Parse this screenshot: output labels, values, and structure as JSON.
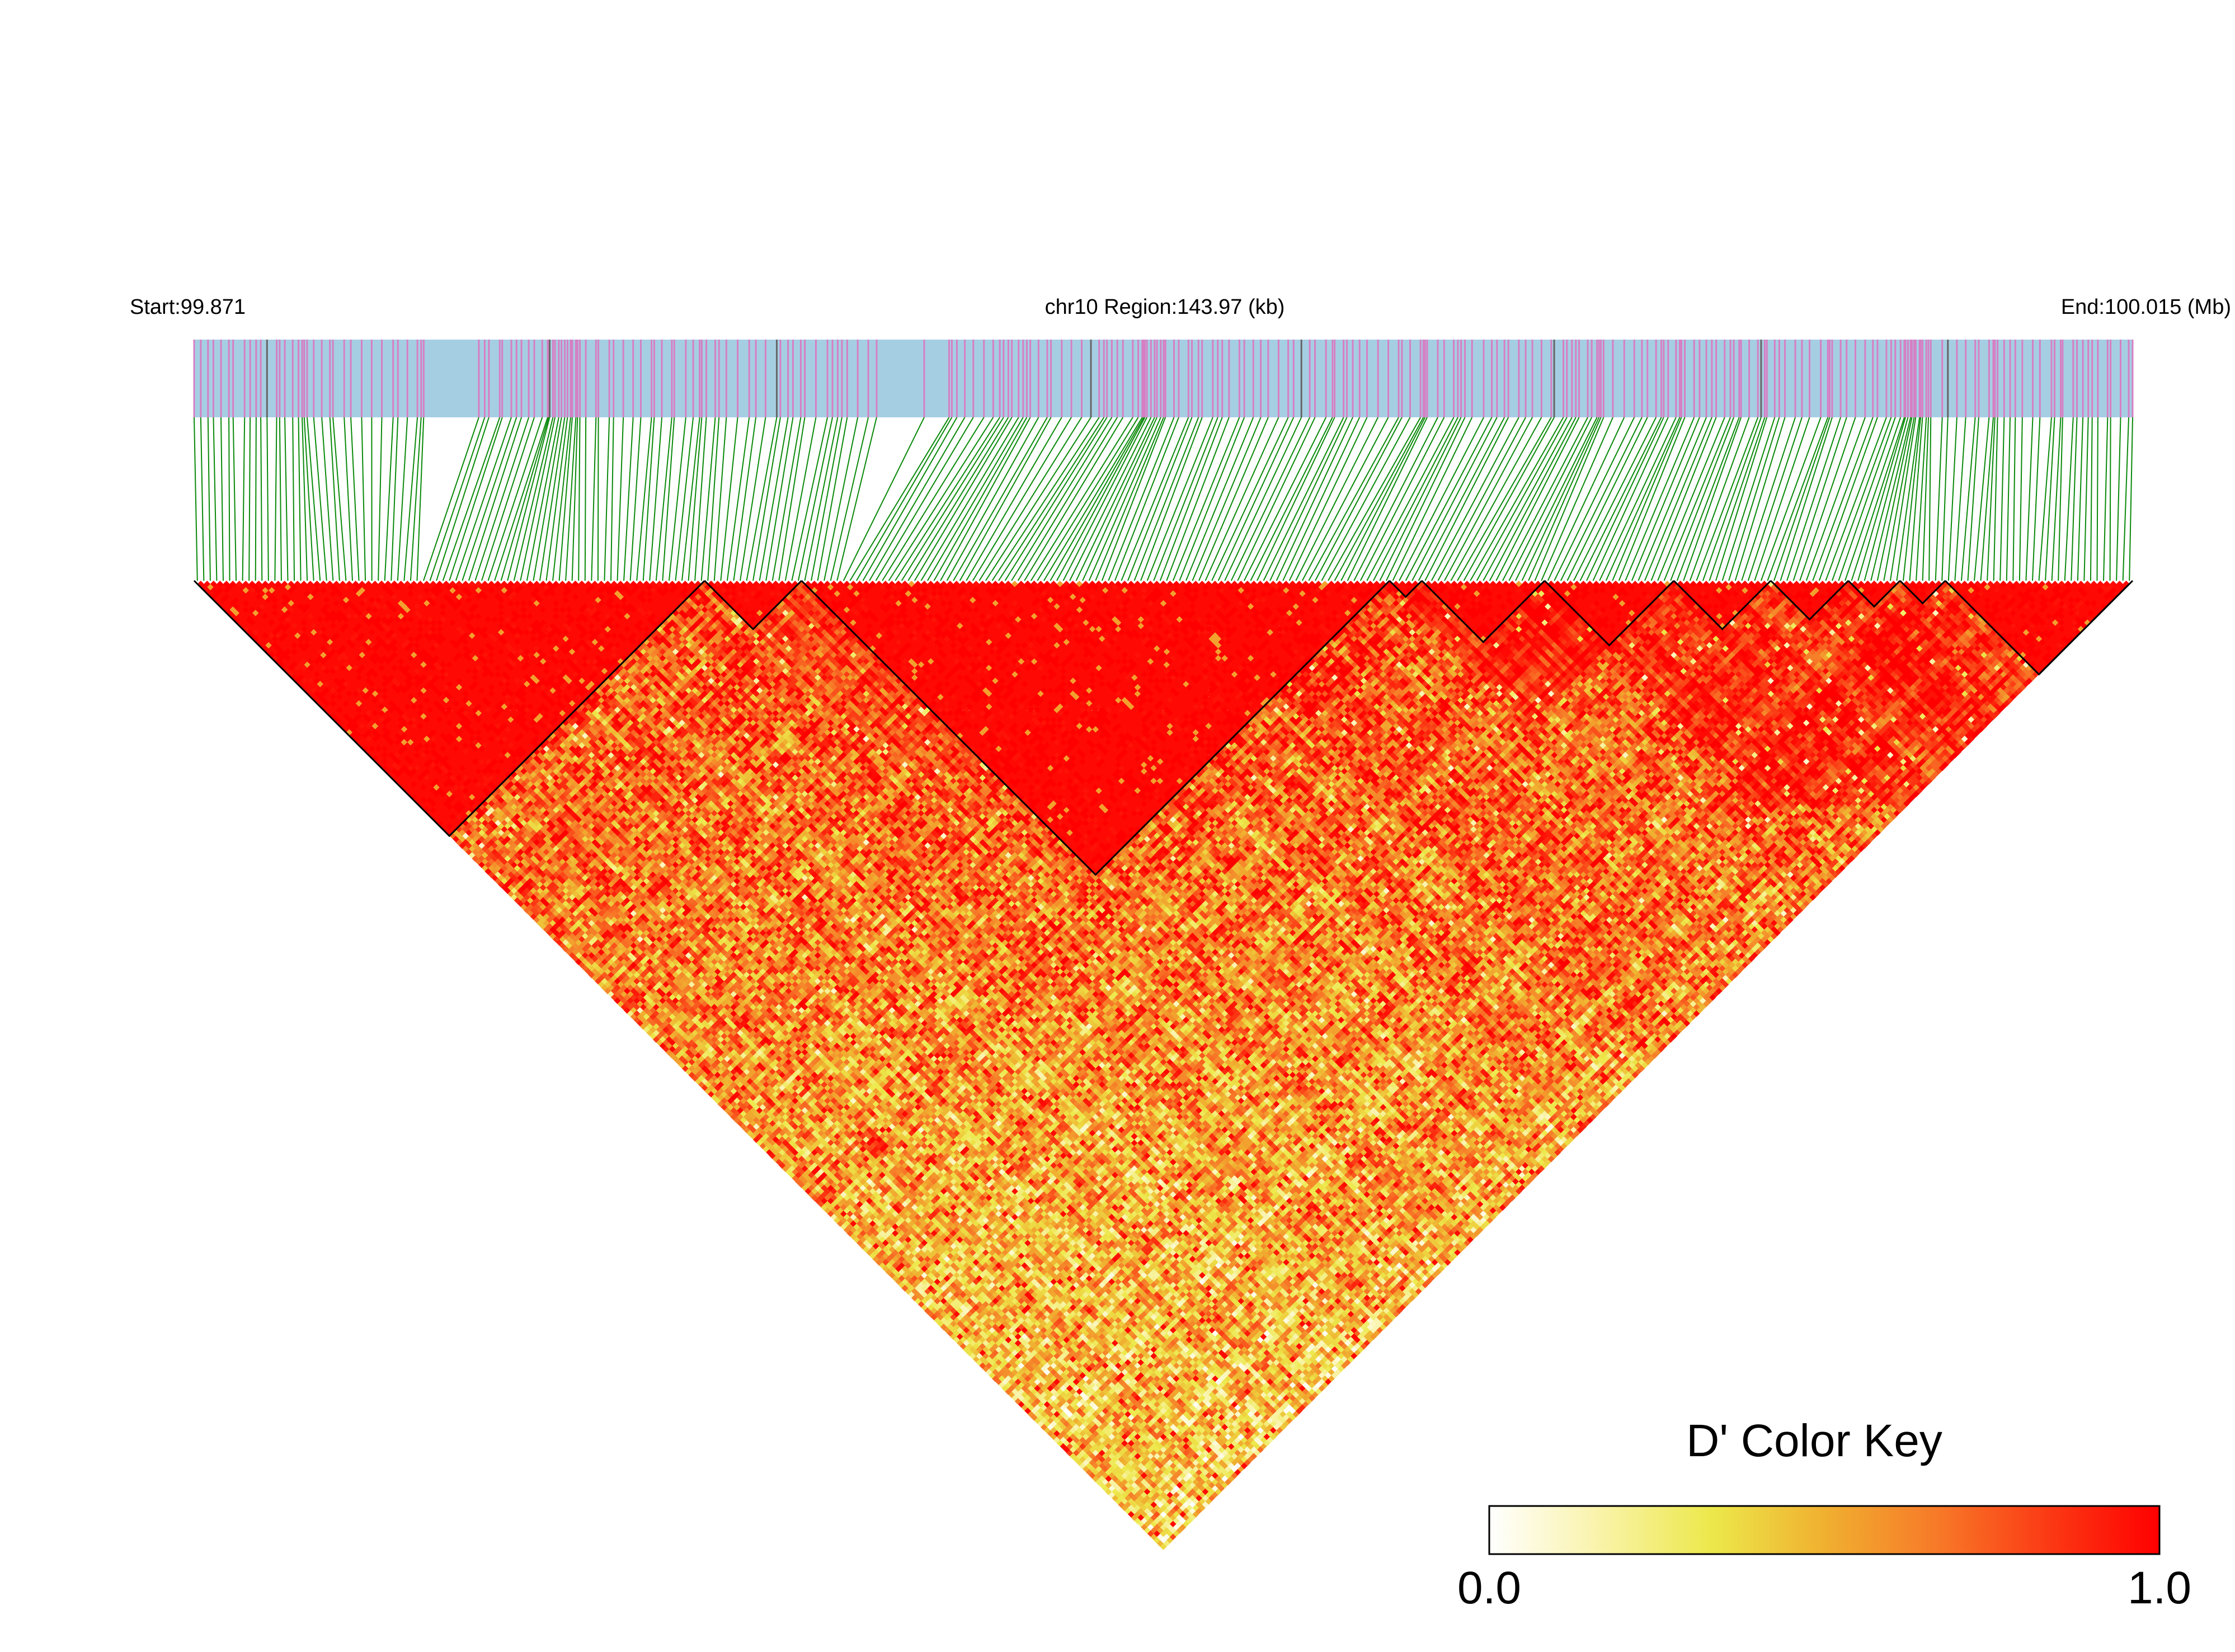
{
  "header": {
    "start_label": "Start:99.871",
    "region_label": "chr10 Region:143.97 (kb)",
    "end_label": "End:100.015 (Mb)"
  },
  "legend": {
    "title": "D' Color Key",
    "min_label": "0.0",
    "max_label": "1.0",
    "min_value": 0.0,
    "max_value": 1.0,
    "gradient": [
      "#ffffff",
      "#f9f3a8",
      "#ece84a",
      "#f0b030",
      "#f77a28",
      "#fb3a14",
      "#ff0000"
    ]
  },
  "colors": {
    "track_background": "#a6cee3",
    "snp_tick": "#d67fc4",
    "snp_tick_dark": "#666666",
    "connector": "#0a8a0a",
    "block_outline": "#000000"
  },
  "chart_data": {
    "type": "heatmap",
    "title": "",
    "chromosome": "chr10",
    "region_start_mb": 99.871,
    "region_end_mb": 100.015,
    "region_size_kb": 143.97,
    "snp_count": 300,
    "value_range": [
      0.0,
      1.0
    ],
    "blocks": [
      {
        "from_snp": 0,
        "to_snp": 78
      },
      {
        "from_snp": 79,
        "to_snp": 93
      },
      {
        "from_snp": 94,
        "to_snp": 184
      },
      {
        "from_snp": 185,
        "to_snp": 189
      },
      {
        "from_snp": 190,
        "to_snp": 208
      },
      {
        "from_snp": 209,
        "to_snp": 228
      },
      {
        "from_snp": 229,
        "to_snp": 243
      },
      {
        "from_snp": 244,
        "to_snp": 255
      },
      {
        "from_snp": 256,
        "to_snp": 263
      },
      {
        "from_snp": 264,
        "to_snp": 270
      },
      {
        "from_snp": 271,
        "to_snp": 299
      }
    ]
  }
}
